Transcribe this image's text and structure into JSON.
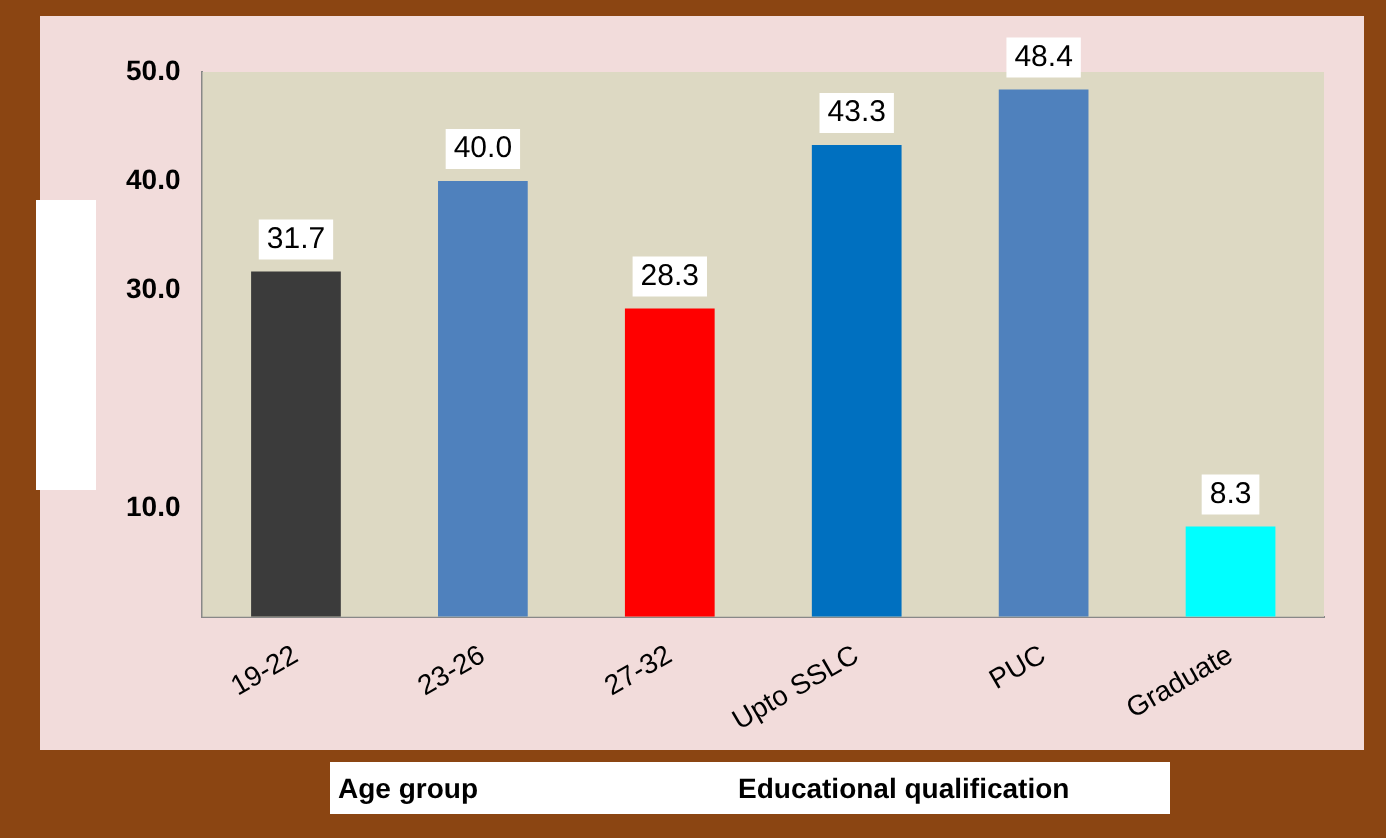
{
  "chart_data": {
    "type": "bar",
    "categories": [
      "19-22",
      "23-26",
      "27-32",
      "Upto SSLC",
      "PUC",
      "Graduate"
    ],
    "values": [
      31.7,
      40.0,
      28.3,
      43.3,
      48.4,
      8.3
    ],
    "colors": [
      "#3b3b3b",
      "#4f81bd",
      "#ff0000",
      "#0070c0",
      "#4f81bd",
      "#00ffff"
    ],
    "ylim": [
      0,
      50
    ],
    "yticks": [
      {
        "value": 10,
        "label": "10.0"
      },
      {
        "value": 30,
        "label": "30.0"
      },
      {
        "value": 40,
        "label": "40.0"
      },
      {
        "value": 50,
        "label": "50.0"
      }
    ],
    "value_labels": [
      "31.7",
      "40.0",
      "28.3",
      "43.3",
      "48.4",
      "8.3"
    ],
    "grid": false,
    "legend": false,
    "annotations": [
      "Age group",
      "Educational qualification"
    ]
  }
}
